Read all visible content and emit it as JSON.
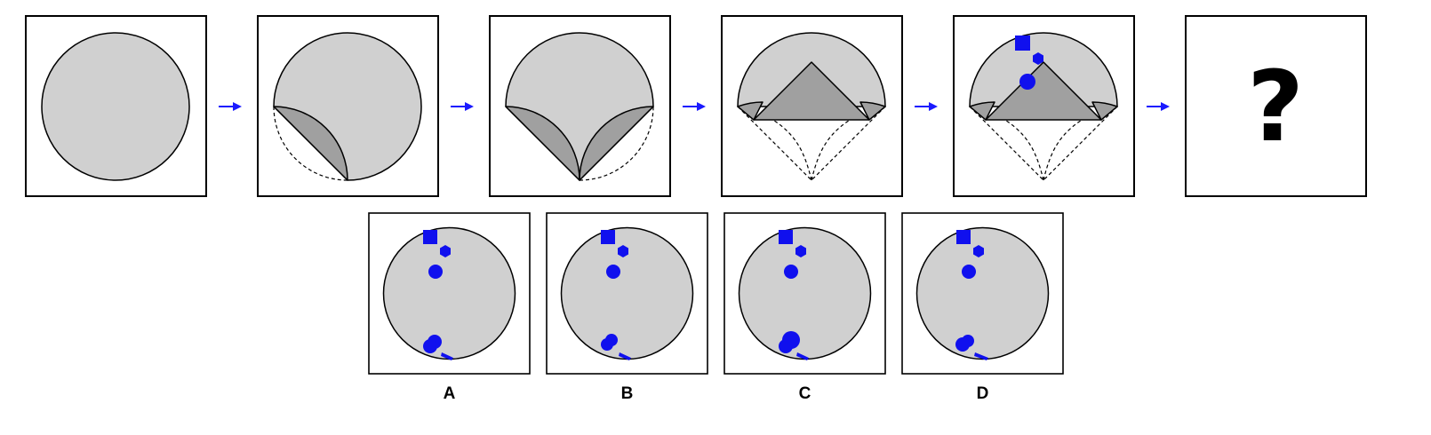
{
  "puzzle": {
    "question_mark": "?",
    "options": [
      {
        "label": "A"
      },
      {
        "label": "B"
      },
      {
        "label": "C"
      },
      {
        "label": "D"
      }
    ]
  },
  "colors": {
    "paper": "#d0d0d0",
    "folded_layer": "#a0a0a0",
    "hole": "#1010ee",
    "arrow": "#1a1aff",
    "outline": "#000000"
  },
  "icons": {
    "arrow": "right-arrow-icon",
    "holes": [
      "square-hole-icon",
      "hexagon-hole-icon",
      "circle-hole-icon"
    ]
  }
}
